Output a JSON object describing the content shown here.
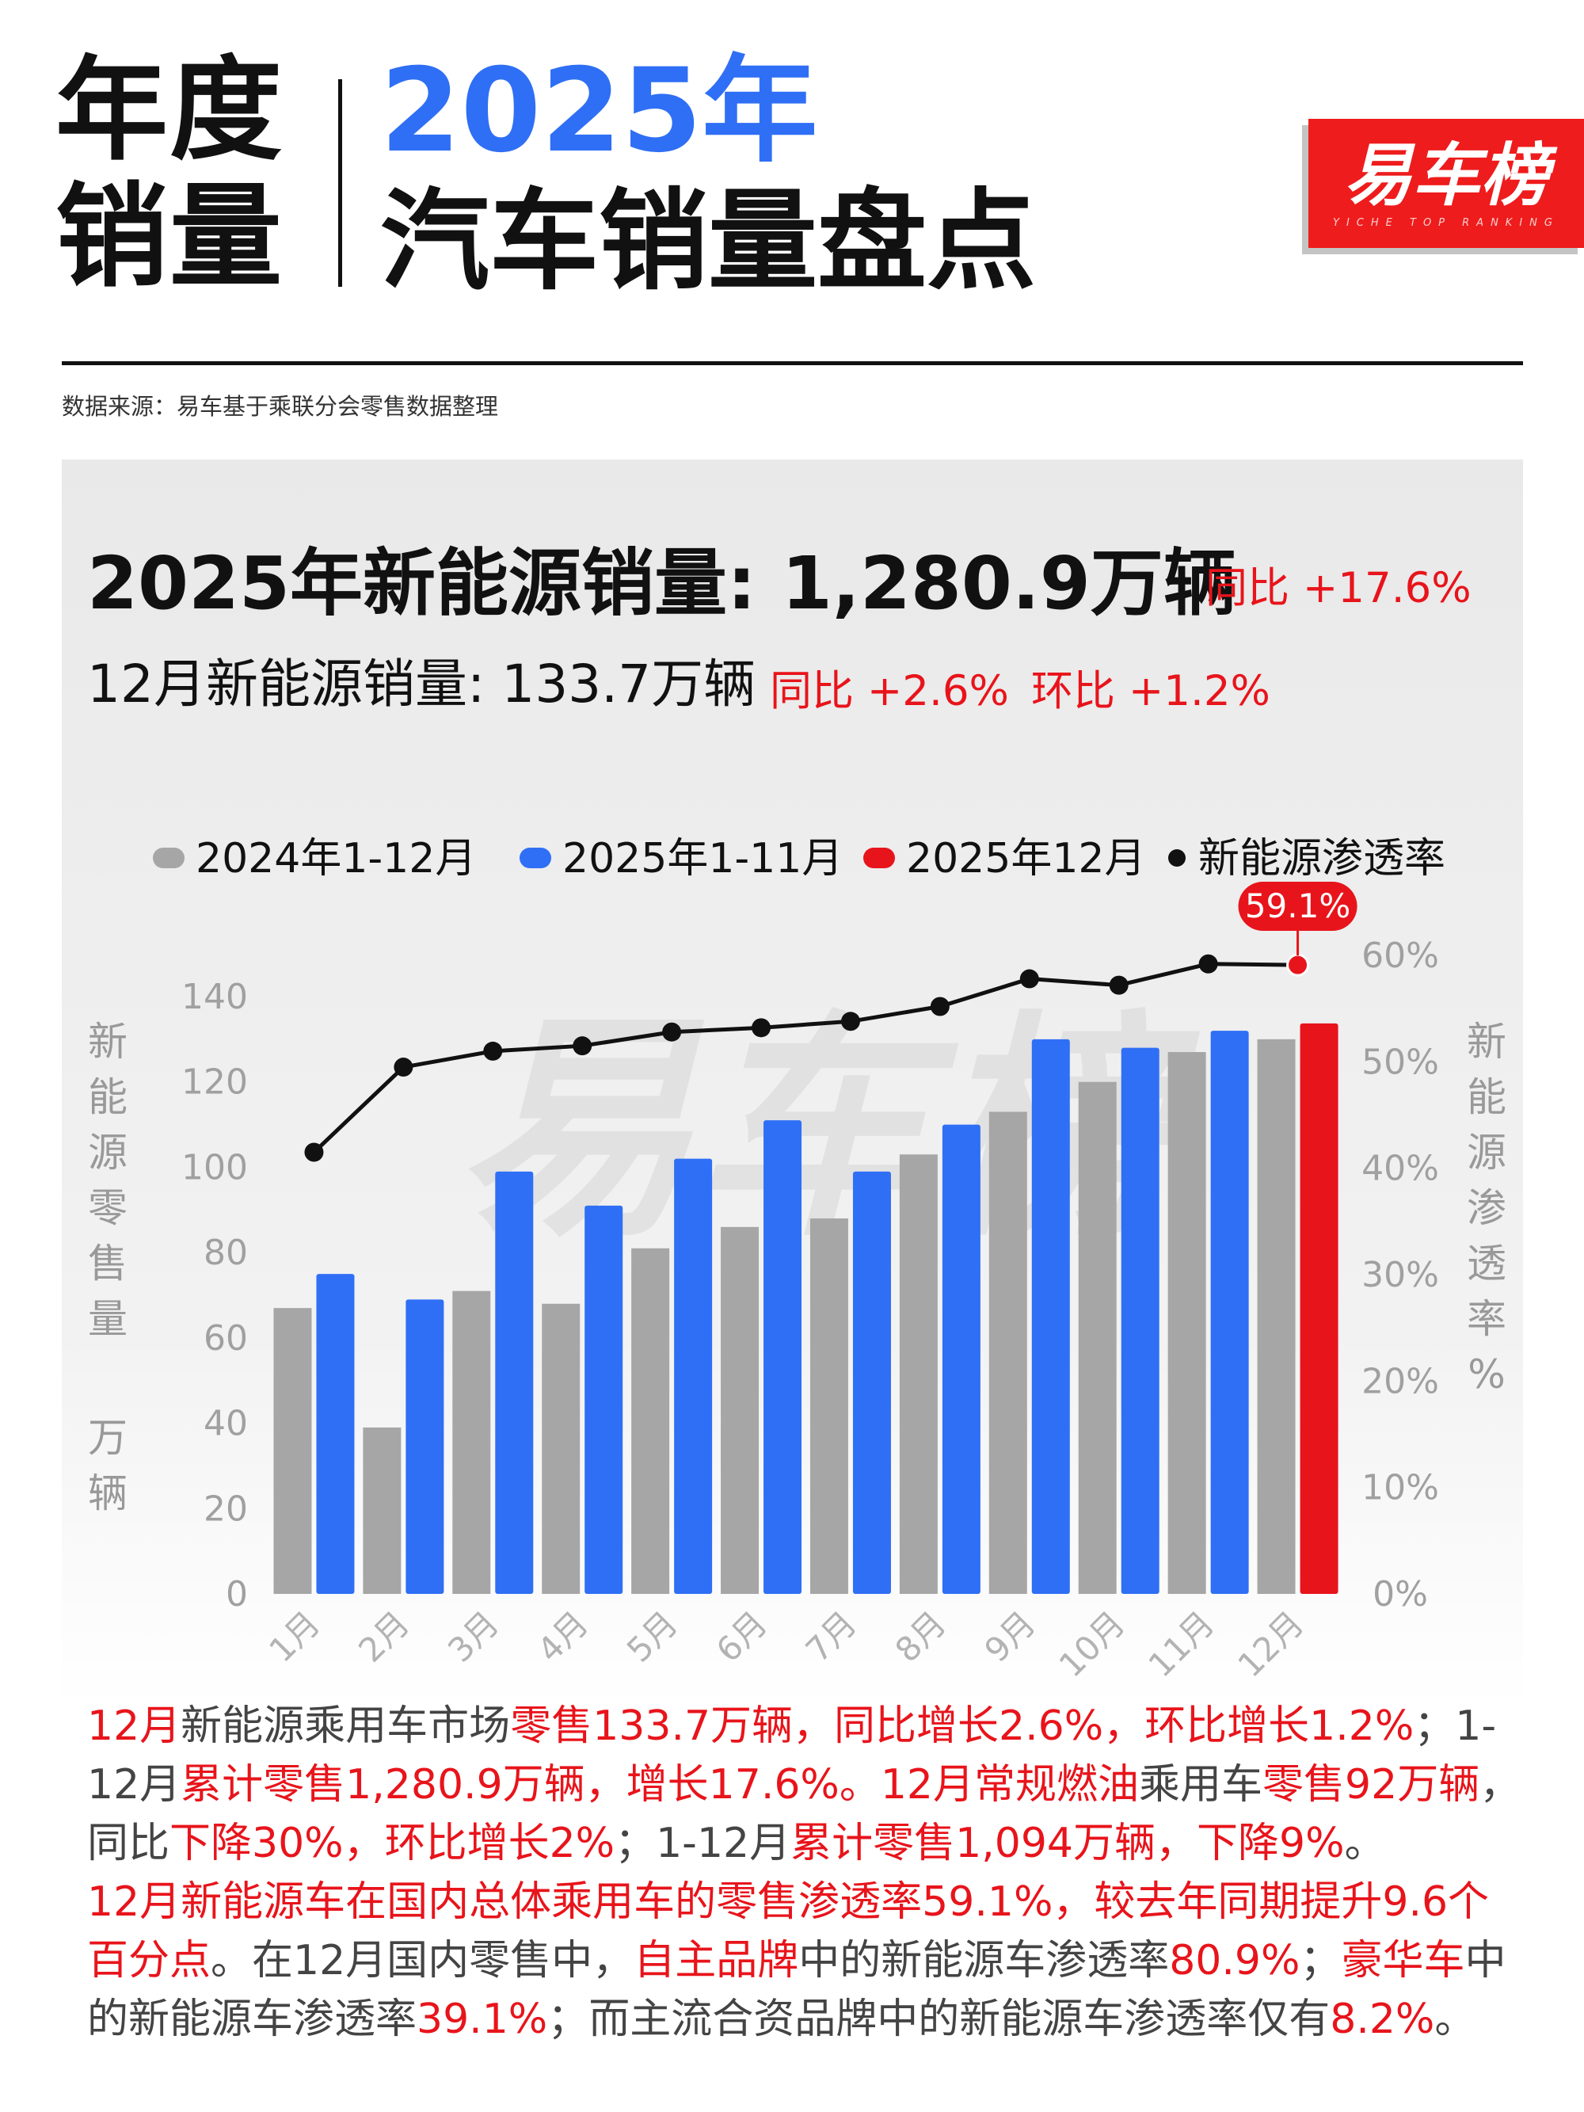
{
  "header": {
    "left_line1": "年度",
    "left_line2": "销量",
    "year": "2025年",
    "subtitle": "汽车销量盘点",
    "logo_text": "易车榜",
    "logo_sub": "YICHE TOP RANKING",
    "source": "数据来源：易车基于乘联分会零售数据整理"
  },
  "summary": {
    "annual_title": "2025年新能源销量: 1,280.9万辆",
    "annual_yoy": "同比 +17.6%",
    "dec_title": "12月新能源销量: 133.7万辆",
    "dec_yoy": "同比 +2.6%",
    "dec_mom": "环比 +1.2%"
  },
  "legend": {
    "s2024": "2024年1-12月",
    "s2025": "2025年1-11月",
    "sdec": "2025年12月",
    "rate": "新能源渗透率"
  },
  "axis_labels": {
    "left": [
      "新",
      "能",
      "源",
      "零",
      "售",
      "量",
      "万",
      "辆"
    ],
    "right": [
      "新",
      "能",
      "源",
      "渗",
      "透",
      "率",
      "%"
    ]
  },
  "colors": {
    "gray": "#a6a6a6",
    "blue": "#2f6ff5",
    "red": "#e8141b",
    "line": "#111111"
  },
  "chart_data": {
    "type": "bar",
    "categories": [
      "1月",
      "2月",
      "3月",
      "4月",
      "5月",
      "6月",
      "7月",
      "8月",
      "9月",
      "10月",
      "11月",
      "12月"
    ],
    "series": [
      {
        "name": "2024年1-12月",
        "values": [
          67,
          39,
          71,
          68,
          81,
          86,
          88,
          103,
          113,
          120,
          127,
          130
        ]
      },
      {
        "name": "2025年",
        "values": [
          75,
          69,
          99,
          91,
          102,
          111,
          99,
          110,
          130,
          128,
          132,
          133.7
        ]
      },
      {
        "name": "新能源渗透率",
        "axis": "right",
        "values": [
          41.5,
          49.5,
          51,
          51.5,
          52.8,
          53.2,
          53.8,
          55.2,
          57.8,
          57.2,
          59.2,
          59.1
        ]
      }
    ],
    "ylim_left": [
      0,
      140
    ],
    "yticks_left": [
      0,
      20,
      40,
      60,
      80,
      100,
      120,
      140
    ],
    "ylim_right": [
      0,
      60
    ],
    "yticks_right": [
      "0%",
      "10%",
      "20%",
      "30%",
      "40%",
      "50%",
      "60%"
    ],
    "ylabel_left": "新能源零售量 万辆",
    "ylabel_right": "新能源渗透率 %",
    "annotation": "59.1%",
    "watermark": "易车榜"
  },
  "paragraph1": [
    {
      "t": "12月",
      "r": true
    },
    {
      "t": "新能源乘用车市场",
      "r": false
    },
    {
      "t": "零售133.7万辆，同比增长2.6%，环比增长1.2%",
      "r": true
    },
    {
      "t": "；1-12月",
      "r": false
    },
    {
      "t": "累计零售1,280.9万辆，增长17.6%。12月常规燃油",
      "r": true
    },
    {
      "t": "乘用车",
      "r": false
    },
    {
      "t": "零售92万辆",
      "r": true
    },
    {
      "t": "，同比",
      "r": false
    },
    {
      "t": "下降30%，环比增长2%",
      "r": true
    },
    {
      "t": "；1-12月",
      "r": false
    },
    {
      "t": "累计零售1,094万辆，下降9%",
      "r": true
    },
    {
      "t": "。",
      "r": false
    }
  ],
  "paragraph2": [
    {
      "t": "12月新能源车在国内总体乘用车的零售渗透率59.1%，较去年同期提升9.6个百分点",
      "r": true
    },
    {
      "t": "。在12月国内零售中，",
      "r": false
    },
    {
      "t": "自主品牌",
      "r": true
    },
    {
      "t": "中的新能源车渗透率",
      "r": false
    },
    {
      "t": "80.9%",
      "r": true
    },
    {
      "t": "；",
      "r": false
    },
    {
      "t": "豪华车",
      "r": true
    },
    {
      "t": "中的新能源车渗透率",
      "r": false
    },
    {
      "t": "39.1%",
      "r": true
    },
    {
      "t": "；而主流合资品牌中的新能源车渗透率仅有",
      "r": false
    },
    {
      "t": "8.2%",
      "r": true
    },
    {
      "t": "。",
      "r": false
    }
  ]
}
